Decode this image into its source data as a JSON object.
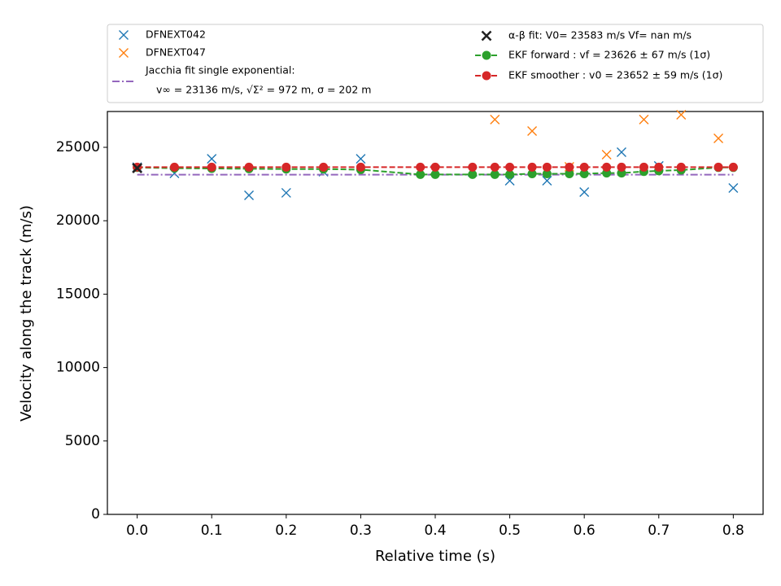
{
  "chart_data": {
    "type": "scatter",
    "xlabel": "Relative time (s)",
    "ylabel": "Velocity along the track (m/s)",
    "xlim": [
      -0.04,
      0.84
    ],
    "ylim": [
      0,
      27440
    ],
    "xticks": [
      {
        "value": 0,
        "label": "0.0"
      },
      0.1,
      0.2,
      0.3,
      0.4,
      0.5,
      0.6,
      0.7,
      0.8
    ],
    "yticks": [
      0,
      5000,
      10000,
      15000,
      20000,
      25000
    ],
    "legend": "above",
    "series": [
      {
        "name": "DFNEXT042",
        "color": "#1f77b4",
        "marker": "x",
        "linestyle": "none",
        "x": [
          0,
          0.05,
          0.1,
          0.15,
          0.2,
          0.25,
          0.3,
          0.4,
          0.45,
          0.5,
          0.55,
          0.6,
          0.65,
          0.7,
          0.8
        ],
        "values": [
          23650,
          23230,
          24220,
          21730,
          21900,
          23340,
          24220,
          23450,
          23340,
          22730,
          22730,
          21950,
          24670,
          23730,
          22230
        ]
      },
      {
        "name": "DFNEXT047",
        "color": "#ff7f0e",
        "marker": "x",
        "linestyle": "none",
        "x": [
          0.48,
          0.53,
          0.58,
          0.63,
          0.68,
          0.73,
          0.78
        ],
        "values": [
          26890,
          26110,
          23670,
          24500,
          26890,
          27220,
          25610
        ]
      },
      {
        "name": "Jacchia fit single exponential:",
        "name_detail": "v∞ = 23136 m/s, √Σ² = 972 m, σ = 202 m",
        "color": "#9467bd",
        "marker": "none",
        "linestyle": "dashdot",
        "x": [
          0,
          0.8
        ],
        "values": [
          23136,
          23136
        ]
      },
      {
        "name": "α-β fit: V0= 23583 m/s   Vf= nan m/s",
        "color": "#222222",
        "marker": "x",
        "linestyle": "none",
        "x": [
          0
        ],
        "values": [
          23583
        ]
      },
      {
        "name": "EKF forward : vf =  23626 ± 67 m/s (1σ)",
        "color": "#2ca02c",
        "marker": "o",
        "linestyle": "dashed",
        "x": [
          0,
          0.05,
          0.1,
          0.15,
          0.2,
          0.25,
          0.3,
          0.38,
          0.4,
          0.45,
          0.48,
          0.5,
          0.53,
          0.55,
          0.58,
          0.6,
          0.63,
          0.65,
          0.68,
          0.7,
          0.73,
          0.78,
          0.8
        ],
        "values": [
          23626,
          23580,
          23560,
          23540,
          23520,
          23520,
          23480,
          23150,
          23150,
          23150,
          23150,
          23150,
          23200,
          23200,
          23200,
          23200,
          23250,
          23250,
          23350,
          23400,
          23450,
          23626,
          23626
        ]
      },
      {
        "name": "EKF smoother : v0 =  23652 ± 59 m/s (1σ)",
        "color": "#d62728",
        "marker": "o",
        "linestyle": "dashed",
        "x": [
          0,
          0.05,
          0.1,
          0.15,
          0.2,
          0.25,
          0.3,
          0.38,
          0.4,
          0.45,
          0.48,
          0.5,
          0.53,
          0.55,
          0.58,
          0.6,
          0.63,
          0.65,
          0.68,
          0.7,
          0.73,
          0.78,
          0.8
        ],
        "values": [
          23652,
          23652,
          23652,
          23652,
          23652,
          23652,
          23652,
          23652,
          23652,
          23652,
          23652,
          23652,
          23652,
          23652,
          23652,
          23652,
          23652,
          23652,
          23652,
          23652,
          23652,
          23652,
          23652
        ]
      }
    ]
  }
}
